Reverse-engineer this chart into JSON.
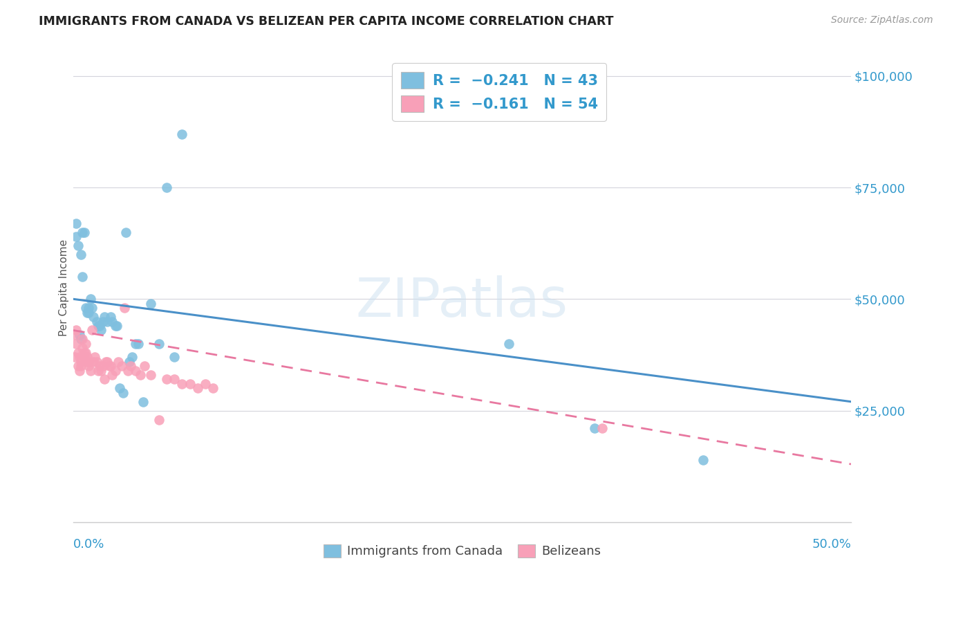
{
  "title": "IMMIGRANTS FROM CANADA VS BELIZEAN PER CAPITA INCOME CORRELATION CHART",
  "source": "Source: ZipAtlas.com",
  "ylabel": "Per Capita Income",
  "xlim": [
    0.0,
    0.5
  ],
  "ylim": [
    0,
    105000
  ],
  "blue_color": "#7fbfdf",
  "pink_color": "#f8a0b8",
  "blue_line_color": "#4a90c8",
  "pink_line_color": "#e878a0",
  "watermark": "ZIPatlas",
  "blue_line_x0": 0.0,
  "blue_line_y0": 50000,
  "blue_line_x1": 0.5,
  "blue_line_y1": 27000,
  "pink_line_x0": 0.0,
  "pink_line_y0": 43000,
  "pink_line_x1": 0.5,
  "pink_line_y1": 13000,
  "canada_x": [
    0.002,
    0.002,
    0.003,
    0.004,
    0.005,
    0.005,
    0.006,
    0.006,
    0.007,
    0.008,
    0.009,
    0.01,
    0.01,
    0.011,
    0.012,
    0.013,
    0.015,
    0.016,
    0.017,
    0.018,
    0.019,
    0.02,
    0.022,
    0.024,
    0.025,
    0.027,
    0.028,
    0.03,
    0.032,
    0.034,
    0.036,
    0.038,
    0.04,
    0.042,
    0.045,
    0.05,
    0.055,
    0.06,
    0.065,
    0.07,
    0.28,
    0.335,
    0.405
  ],
  "canada_y": [
    67000,
    64000,
    62000,
    42000,
    41000,
    60000,
    55000,
    65000,
    65000,
    48000,
    47000,
    48000,
    47000,
    50000,
    48000,
    46000,
    45000,
    44000,
    44000,
    43000,
    45000,
    46000,
    45000,
    46000,
    45000,
    44000,
    44000,
    30000,
    29000,
    65000,
    36000,
    37000,
    40000,
    40000,
    27000,
    49000,
    40000,
    75000,
    37000,
    87000,
    40000,
    21000,
    14000
  ],
  "belizean_x": [
    0.001,
    0.001,
    0.002,
    0.002,
    0.003,
    0.003,
    0.004,
    0.004,
    0.005,
    0.005,
    0.006,
    0.006,
    0.007,
    0.007,
    0.008,
    0.008,
    0.009,
    0.009,
    0.01,
    0.01,
    0.011,
    0.012,
    0.013,
    0.014,
    0.015,
    0.016,
    0.017,
    0.018,
    0.019,
    0.02,
    0.021,
    0.022,
    0.023,
    0.024,
    0.025,
    0.027,
    0.029,
    0.031,
    0.033,
    0.035,
    0.037,
    0.04,
    0.043,
    0.046,
    0.05,
    0.055,
    0.06,
    0.065,
    0.07,
    0.075,
    0.08,
    0.085,
    0.09,
    0.34
  ],
  "belizean_y": [
    42000,
    37000,
    43000,
    40000,
    38000,
    35000,
    37000,
    34000,
    36000,
    35000,
    41000,
    39000,
    38000,
    37000,
    38000,
    40000,
    37000,
    36000,
    36000,
    35000,
    34000,
    43000,
    36000,
    37000,
    36000,
    34000,
    35000,
    34000,
    35000,
    32000,
    36000,
    36000,
    35000,
    35000,
    33000,
    34000,
    36000,
    35000,
    48000,
    34000,
    35000,
    34000,
    33000,
    35000,
    33000,
    23000,
    32000,
    32000,
    31000,
    31000,
    30000,
    31000,
    30000,
    21000
  ]
}
